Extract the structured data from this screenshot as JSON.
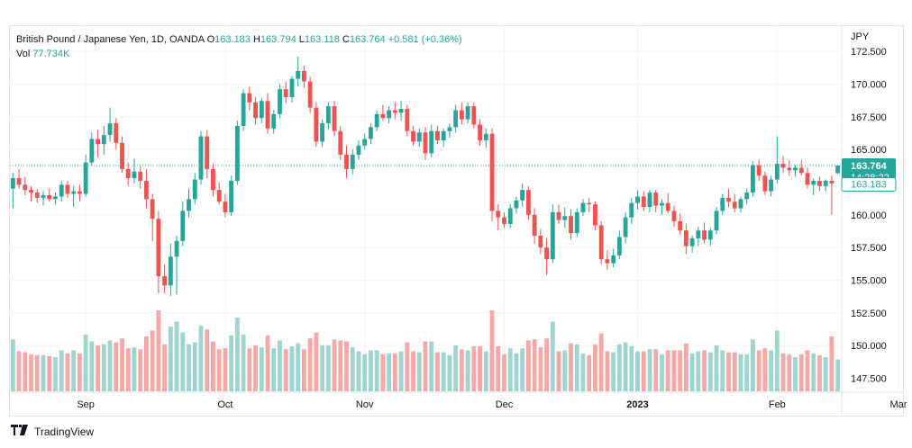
{
  "legend": {
    "symbol": "British Pound / Japanese Yen, 1D, OANDA",
    "o_label": "O",
    "o_value": "163.183",
    "h_label": "H",
    "h_value": "163.794",
    "l_label": "L",
    "l_value": "163.118",
    "c_label": "C",
    "c_value": "163.764",
    "change": "+0.581 (+0.36%)",
    "vol_label": "Vol",
    "vol_value": "77.734K"
  },
  "footer": {
    "brand": "TradingView",
    "logo_icon": "tradingview-logo-icon"
  },
  "price_tags": {
    "last": "163.764",
    "countdown": "14:28:22",
    "open": "163.183"
  },
  "colors": {
    "up": "#26a69a",
    "down": "#ef5350",
    "up_vol": "#9fd5cf",
    "down_vol": "#f5a8a6"
  },
  "chart_data": {
    "type": "candlestick",
    "title": "British Pound / Japanese Yen, 1D, OANDA",
    "currency": "JPY",
    "ylim": [
      146.5,
      174.5
    ],
    "y_ticks": [
      "172.500",
      "170.000",
      "167.500",
      "165.000",
      "160.000",
      "157.500",
      "155.000",
      "152.500",
      "150.000",
      "147.500"
    ],
    "x_ticks": [
      "Sep",
      "Oct",
      "Nov",
      "Dec",
      "2023",
      "Feb",
      "Mar"
    ],
    "x_tick_index": [
      12,
      35,
      58,
      81,
      103,
      126,
      146
    ],
    "grid": true,
    "ohlc": [
      [
        162.0,
        163.2,
        160.5,
        162.8
      ],
      [
        162.8,
        163.5,
        162.0,
        162.3
      ],
      [
        162.3,
        162.9,
        161.5,
        161.9
      ],
      [
        161.9,
        162.2,
        161.0,
        161.7
      ],
      [
        161.7,
        162.0,
        160.9,
        161.3
      ],
      [
        161.3,
        161.8,
        160.7,
        161.5
      ],
      [
        161.5,
        162.0,
        161.0,
        161.2
      ],
      [
        161.2,
        161.7,
        160.8,
        161.4
      ],
      [
        161.4,
        162.6,
        161.0,
        162.3
      ],
      [
        162.3,
        162.6,
        161.3,
        161.6
      ],
      [
        161.6,
        162.2,
        160.6,
        161.8
      ],
      [
        161.8,
        162.3,
        161.0,
        161.6
      ],
      [
        161.6,
        164.6,
        161.4,
        164.0
      ],
      [
        164.0,
        166.3,
        163.8,
        165.8
      ],
      [
        165.8,
        166.5,
        164.4,
        165.4
      ],
      [
        165.4,
        166.8,
        164.6,
        166.1
      ],
      [
        166.1,
        168.2,
        165.6,
        167.0
      ],
      [
        167.0,
        167.4,
        165.0,
        165.5
      ],
      [
        165.5,
        166.0,
        163.2,
        163.5
      ],
      [
        163.5,
        164.0,
        162.2,
        162.8
      ],
      [
        162.8,
        164.3,
        162.4,
        163.3
      ],
      [
        163.3,
        163.7,
        162.0,
        162.6
      ],
      [
        162.6,
        163.5,
        160.5,
        161.2
      ],
      [
        161.2,
        161.6,
        158.0,
        159.7
      ],
      [
        159.7,
        160.3,
        154.0,
        155.3
      ],
      [
        155.3,
        156.2,
        154.0,
        154.6
      ],
      [
        154.6,
        157.8,
        153.8,
        156.8
      ],
      [
        156.8,
        158.4,
        153.9,
        158.0
      ],
      [
        158.0,
        161.0,
        157.6,
        160.3
      ],
      [
        160.3,
        162.0,
        159.8,
        161.2
      ],
      [
        161.2,
        163.2,
        160.8,
        162.7
      ],
      [
        162.7,
        166.4,
        162.3,
        166.0
      ],
      [
        166.0,
        166.5,
        162.8,
        163.5
      ],
      [
        163.5,
        163.9,
        161.4,
        161.9
      ],
      [
        161.9,
        162.5,
        160.8,
        161.0
      ],
      [
        161.0,
        161.6,
        159.8,
        160.2
      ],
      [
        160.2,
        163.0,
        159.9,
        162.6
      ],
      [
        162.6,
        167.2,
        162.3,
        166.8
      ],
      [
        166.8,
        169.6,
        166.4,
        169.3
      ],
      [
        169.3,
        169.8,
        168.0,
        168.6
      ],
      [
        168.6,
        169.0,
        166.9,
        167.4
      ],
      [
        167.4,
        168.9,
        167.0,
        168.7
      ],
      [
        168.7,
        169.3,
        166.2,
        166.6
      ],
      [
        166.6,
        168.0,
        166.2,
        167.7
      ],
      [
        167.7,
        170.0,
        167.4,
        169.6
      ],
      [
        169.6,
        170.2,
        168.5,
        169.0
      ],
      [
        169.0,
        170.6,
        168.6,
        170.4
      ],
      [
        170.4,
        172.1,
        169.8,
        171.0
      ],
      [
        171.0,
        171.4,
        169.7,
        170.2
      ],
      [
        170.2,
        170.6,
        167.8,
        168.2
      ],
      [
        168.2,
        168.6,
        165.2,
        165.6
      ],
      [
        165.6,
        167.3,
        165.2,
        167.0
      ],
      [
        167.0,
        168.6,
        166.5,
        168.3
      ],
      [
        168.3,
        168.7,
        166.0,
        166.4
      ],
      [
        166.4,
        166.8,
        164.2,
        164.6
      ],
      [
        164.6,
        165.3,
        162.8,
        163.5
      ],
      [
        163.5,
        165.0,
        163.1,
        164.6
      ],
      [
        164.6,
        165.7,
        164.2,
        165.3
      ],
      [
        165.3,
        166.2,
        165.0,
        165.8
      ],
      [
        165.8,
        167.0,
        165.4,
        166.7
      ],
      [
        166.7,
        168.0,
        166.4,
        167.7
      ],
      [
        167.7,
        168.4,
        167.2,
        167.4
      ],
      [
        167.4,
        168.3,
        167.0,
        168.0
      ],
      [
        168.0,
        168.6,
        167.3,
        167.8
      ],
      [
        167.8,
        168.7,
        167.2,
        168.1
      ],
      [
        168.1,
        168.4,
        166.0,
        166.4
      ],
      [
        166.4,
        166.8,
        165.3,
        165.6
      ],
      [
        165.6,
        166.6,
        165.2,
        166.3
      ],
      [
        166.3,
        166.7,
        164.2,
        164.7
      ],
      [
        164.7,
        166.9,
        164.4,
        166.4
      ],
      [
        166.4,
        166.8,
        165.4,
        165.7
      ],
      [
        165.7,
        166.6,
        165.2,
        166.4
      ],
      [
        166.4,
        167.0,
        165.9,
        166.7
      ],
      [
        166.7,
        168.4,
        166.3,
        168.0
      ],
      [
        168.0,
        168.6,
        166.9,
        167.3
      ],
      [
        167.3,
        168.6,
        167.0,
        168.3
      ],
      [
        168.3,
        168.6,
        166.6,
        166.9
      ],
      [
        166.9,
        167.3,
        165.3,
        165.7
      ],
      [
        165.7,
        166.6,
        165.1,
        166.2
      ],
      [
        166.2,
        166.6,
        159.5,
        160.3
      ],
      [
        160.3,
        160.8,
        158.8,
        159.8
      ],
      [
        159.8,
        160.2,
        159.0,
        159.3
      ],
      [
        159.3,
        160.8,
        159.0,
        160.5
      ],
      [
        160.5,
        161.4,
        160.1,
        161.1
      ],
      [
        161.1,
        162.4,
        160.6,
        161.9
      ],
      [
        161.9,
        162.2,
        159.6,
        160.0
      ],
      [
        160.0,
        160.5,
        157.8,
        158.4
      ],
      [
        158.4,
        158.9,
        157.0,
        157.5
      ],
      [
        157.5,
        158.2,
        155.4,
        156.6
      ],
      [
        156.6,
        160.8,
        156.3,
        160.2
      ],
      [
        160.2,
        160.8,
        159.3,
        159.6
      ],
      [
        159.6,
        160.6,
        159.0,
        159.9
      ],
      [
        159.9,
        160.4,
        158.1,
        158.6
      ],
      [
        158.6,
        160.5,
        158.3,
        160.2
      ],
      [
        160.2,
        161.2,
        159.9,
        160.9
      ],
      [
        160.9,
        161.3,
        160.2,
        160.8
      ],
      [
        160.8,
        161.0,
        158.8,
        159.2
      ],
      [
        159.2,
        159.5,
        156.2,
        156.6
      ],
      [
        156.6,
        157.3,
        155.8,
        156.3
      ],
      [
        156.3,
        157.4,
        156.0,
        156.9
      ],
      [
        156.9,
        158.8,
        156.6,
        158.3
      ],
      [
        158.3,
        160.2,
        157.8,
        159.8
      ],
      [
        159.8,
        161.3,
        159.3,
        160.9
      ],
      [
        160.9,
        161.9,
        160.4,
        161.4
      ],
      [
        161.4,
        161.8,
        160.3,
        160.6
      ],
      [
        160.6,
        161.9,
        160.2,
        161.7
      ],
      [
        161.7,
        161.9,
        160.2,
        160.7
      ],
      [
        160.7,
        161.2,
        160.0,
        160.9
      ],
      [
        160.9,
        161.7,
        160.1,
        160.3
      ],
      [
        160.3,
        160.7,
        159.1,
        159.5
      ],
      [
        159.5,
        160.1,
        158.5,
        158.8
      ],
      [
        158.8,
        159.3,
        157.0,
        157.6
      ],
      [
        157.6,
        158.4,
        157.1,
        158.2
      ],
      [
        158.2,
        159.1,
        157.6,
        158.8
      ],
      [
        158.8,
        159.4,
        157.8,
        158.1
      ],
      [
        158.1,
        159.0,
        157.6,
        158.8
      ],
      [
        158.8,
        160.6,
        158.5,
        160.3
      ],
      [
        160.3,
        161.6,
        160.0,
        161.3
      ],
      [
        161.3,
        162.0,
        160.6,
        161.0
      ],
      [
        161.0,
        161.6,
        160.2,
        160.5
      ],
      [
        160.5,
        161.4,
        160.2,
        161.2
      ],
      [
        161.2,
        162.0,
        160.8,
        161.7
      ],
      [
        161.7,
        164.1,
        161.4,
        163.8
      ],
      [
        163.8,
        164.2,
        162.6,
        163.0
      ],
      [
        163.0,
        163.3,
        161.5,
        161.8
      ],
      [
        161.8,
        163.0,
        161.4,
        162.7
      ],
      [
        162.7,
        166.0,
        162.4,
        163.9
      ],
      [
        163.9,
        164.5,
        163.2,
        163.6
      ],
      [
        163.6,
        164.2,
        163.0,
        163.4
      ],
      [
        163.4,
        163.8,
        162.9,
        163.6
      ],
      [
        163.6,
        164.2,
        163.0,
        163.2
      ],
      [
        163.2,
        163.6,
        162.0,
        162.3
      ],
      [
        162.3,
        162.8,
        161.5,
        162.6
      ],
      [
        162.6,
        162.9,
        161.8,
        162.2
      ],
      [
        162.2,
        162.7,
        161.8,
        162.6
      ],
      [
        162.6,
        163.0,
        160.0,
        162.4
      ],
      [
        163.183,
        163.794,
        163.118,
        163.764
      ]
    ],
    "volume_note": "relative volume bars, colored by candle direction"
  }
}
